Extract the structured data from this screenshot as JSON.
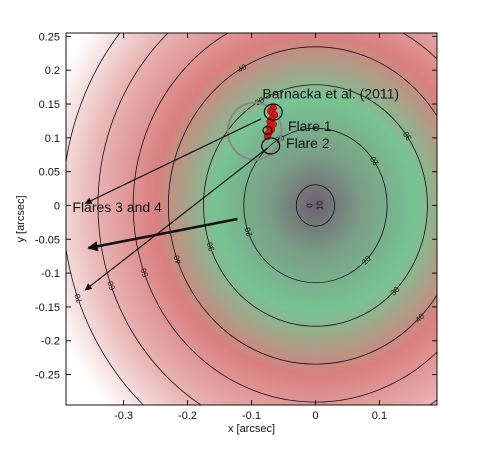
{
  "chart_data": {
    "type": "heatmap",
    "xlabel": "x [arcsec]",
    "ylabel": "y [arcsec]",
    "xlim": [
      -0.39,
      0.19
    ],
    "ylim": [
      -0.295,
      0.255
    ],
    "x_ticks": [
      "-0.3",
      "-0.2",
      "-0.1",
      "0",
      "0.1"
    ],
    "x_tick_values": [
      -0.3,
      -0.2,
      -0.1,
      0,
      0.1
    ],
    "y_ticks": [
      "0.25",
      "0.2",
      "0.15",
      "0.1",
      "0.05",
      "0",
      "-0.05",
      "-0.1",
      "-0.15",
      "-0.2",
      "-0.25"
    ],
    "y_tick_values": [
      0.25,
      0.2,
      0.15,
      0.1,
      0.05,
      0,
      -0.05,
      -0.1,
      -0.15,
      -0.2,
      -0.25
    ],
    "grid": false,
    "colormap": [
      "#6f5f72",
      "#7a9c86",
      "#78c493",
      "#d97f7f",
      "#e9b7b7",
      "#ffffff"
    ],
    "center": [
      0,
      0
    ],
    "contours": [
      {
        "level": 10,
        "label": "10",
        "radius": 0.03
      },
      {
        "level": 20,
        "label": "20",
        "radius": 0.112
      },
      {
        "level": 30,
        "label": "30",
        "radius": 0.175
      },
      {
        "level": 40,
        "label": "40",
        "radius": 0.23
      },
      {
        "level": 50,
        "label": "50",
        "radius": 0.285
      },
      {
        "level": 60,
        "label": "60",
        "radius": 0.34
      },
      {
        "level": 70,
        "label": "70",
        "radius": 0.395
      }
    ],
    "inner_contour_labels": [
      "0",
      "10"
    ],
    "annotations": [
      {
        "text": "Barnacka et al. (2011)",
        "x": -0.083,
        "y": 0.158
      },
      {
        "text": "Flare 1",
        "x": -0.043,
        "y": 0.11
      },
      {
        "text": "Flare 2",
        "x": -0.046,
        "y": 0.085
      },
      {
        "text": "Flares 3 and 4",
        "x": -0.38,
        "y": -0.01
      }
    ],
    "big_circle": {
      "x": -0.095,
      "y": 0.11,
      "r": 0.042
    },
    "flare_circles": [
      {
        "name": "Flare 1",
        "x": -0.075,
        "y": 0.111,
        "r": 0.007
      },
      {
        "name": "Flare 2",
        "x": -0.07,
        "y": 0.088,
        "r": 0.014
      },
      {
        "name": "Barnacka",
        "x": -0.066,
        "y": 0.138,
        "r": 0.014
      }
    ],
    "red_points": [
      {
        "x": -0.066,
        "y": 0.144
      },
      {
        "x": -0.07,
        "y": 0.139
      },
      {
        "x": -0.064,
        "y": 0.134
      },
      {
        "x": -0.068,
        "y": 0.129
      },
      {
        "x": -0.071,
        "y": 0.124
      },
      {
        "x": -0.066,
        "y": 0.12
      },
      {
        "x": -0.072,
        "y": 0.116
      },
      {
        "x": -0.069,
        "y": 0.112
      },
      {
        "x": -0.073,
        "y": 0.107
      },
      {
        "x": -0.075,
        "y": 0.102
      }
    ],
    "arrows": [
      {
        "from": [
          -0.085,
          0.128
        ],
        "to": [
          -0.36,
          0.003
        ],
        "width": 1.2
      },
      {
        "from": [
          -0.122,
          -0.02
        ],
        "to": [
          -0.355,
          -0.063
        ],
        "width": 2.6
      },
      {
        "from": [
          -0.075,
          0.085
        ],
        "to": [
          -0.36,
          -0.125
        ],
        "width": 1.2
      }
    ],
    "theme": {
      "ink": "#111111",
      "marker": "#d91a1a",
      "circle_gray": "#888888"
    }
  }
}
